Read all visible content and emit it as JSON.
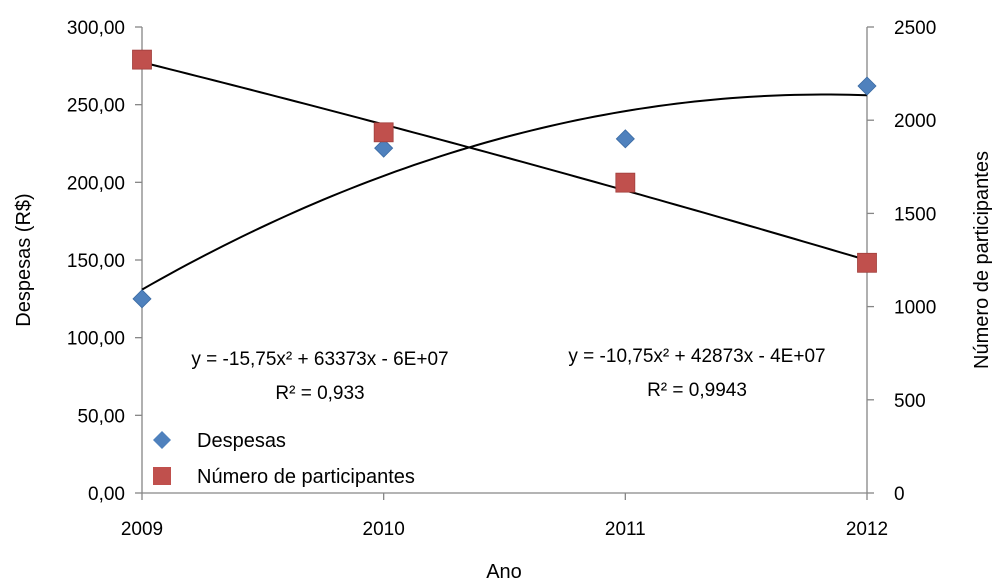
{
  "chart_data": {
    "type": "scatter",
    "xlabel": "Ano",
    "ylabel_left": "Despesas (R$)",
    "ylabel_right": "Número de participantes",
    "x_ticks": [
      "2009",
      "2010",
      "2011",
      "2012"
    ],
    "y_left_ticks": [
      "0,00",
      "50,00",
      "100,00",
      "150,00",
      "200,00",
      "250,00",
      "300,00"
    ],
    "y_right_ticks": [
      "0",
      "500",
      "1000",
      "1500",
      "2000",
      "2500"
    ],
    "xlim": [
      2009,
      2012
    ],
    "ylim_left": [
      0,
      300
    ],
    "ylim_right": [
      0,
      2500
    ],
    "grid": false,
    "legend_position": "bottom-left",
    "series": [
      {
        "name": "Despesas",
        "axis": "left",
        "marker": "diamond",
        "color": "#4F81BD",
        "x": [
          2009,
          2010,
          2011,
          2012
        ],
        "y": [
          125,
          222,
          228,
          262
        ],
        "trendline": "poly2",
        "equation": "y = -15,75x² + 63373x - 6E+07",
        "r2": "R² = 0,933"
      },
      {
        "name": "Número de participantes",
        "axis": "right",
        "marker": "square",
        "color": "#C0504D",
        "x": [
          2009,
          2010,
          2011,
          2012
        ],
        "y": [
          2325,
          1935,
          1665,
          1235
        ],
        "trendline": "poly2",
        "equation": "y = -10,75x² + 42873x - 4E+07",
        "r2": "R² = 0,9943"
      }
    ]
  }
}
